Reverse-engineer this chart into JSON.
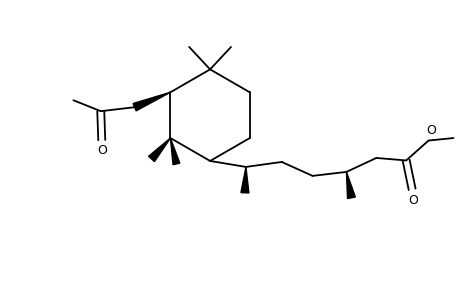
{
  "background": "#ffffff",
  "line_color": "#000000",
  "bond_width": 1.3,
  "fig_width": 4.6,
  "fig_height": 3.0,
  "dpi": 100,
  "xlim": [
    0,
    9.2
  ],
  "ylim": [
    0,
    6.0
  ]
}
